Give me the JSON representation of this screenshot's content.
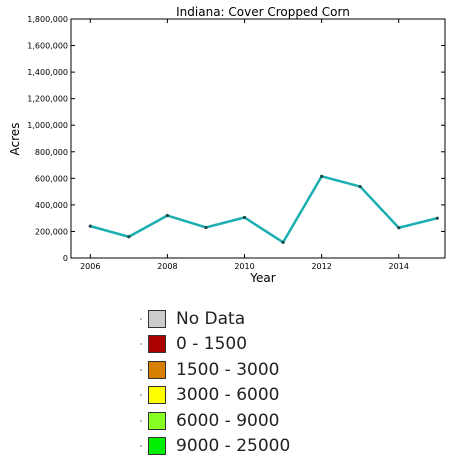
{
  "chart_data": {
    "type": "line",
    "title": "Indiana: Cover Cropped Corn",
    "xlabel": "Year",
    "ylabel": "Acres",
    "x": [
      2006,
      2007,
      2008,
      2009,
      2010,
      2011,
      2012,
      2013,
      2014,
      2015
    ],
    "values": [
      240000,
      160000,
      320000,
      230000,
      305000,
      118000,
      615000,
      538000,
      228000,
      300000
    ],
    "xlim": [
      2005.5,
      2015.2
    ],
    "ylim": [
      0,
      1800000
    ],
    "xticks": [
      2006,
      2008,
      2010,
      2012,
      2014
    ],
    "yticks": [
      0,
      200000,
      400000,
      600000,
      800000,
      1000000,
      1200000,
      1400000,
      1600000,
      1800000
    ],
    "xtick_labels": [
      "2006",
      "2008",
      "2010",
      "2012",
      "2014"
    ],
    "ytick_labels": [
      "0",
      "200,000",
      "400,000",
      "600,000",
      "800,000",
      "1,000,000",
      "1,200,000",
      "1,400,000",
      "1,600,000",
      "1,800,000"
    ],
    "line_color": "#1aaeb0",
    "grid": false
  },
  "legend": {
    "items": [
      {
        "label": "No Data",
        "color": "#cccccc"
      },
      {
        "label": "0 - 1500",
        "color": "#aa0000"
      },
      {
        "label": "1500 - 3000",
        "color": "#d97f00"
      },
      {
        "label": "3000 - 6000",
        "color": "#ffff00"
      },
      {
        "label": "6000 - 9000",
        "color": "#88ff22"
      },
      {
        "label": "9000 - 25000",
        "color": "#00ee00"
      }
    ]
  }
}
